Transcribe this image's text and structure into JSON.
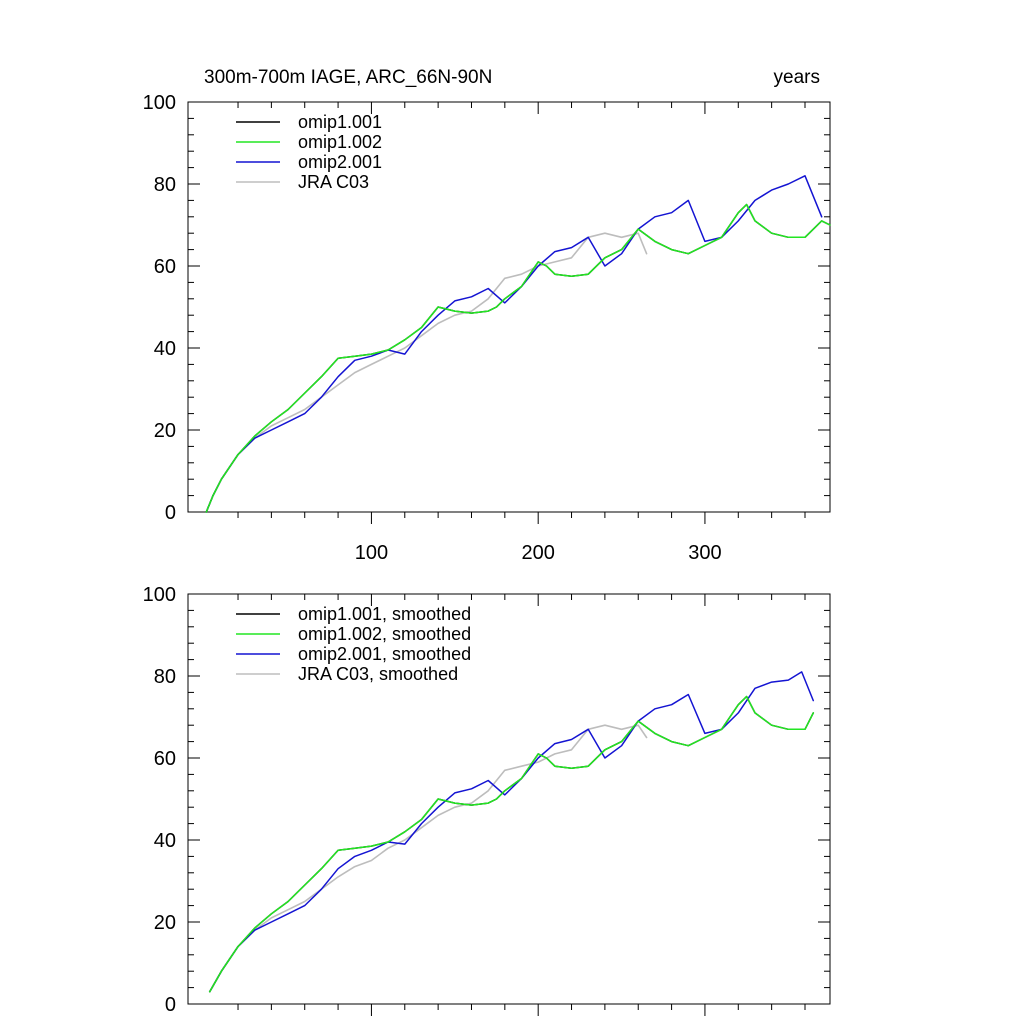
{
  "header": {
    "left": "300m-700m IAGE, ARC_66N-90N",
    "right": "years"
  },
  "colors": {
    "omip1_001": "#000000",
    "omip1_002": "#22e622",
    "omip2_001": "#1414d2",
    "jra": "#bdbdbd"
  },
  "chart_data": [
    {
      "type": "line",
      "title": "300m-700m IAGE, ARC_66N-90N",
      "right_label": "years",
      "xlim": [
        -10,
        375
      ],
      "ylim": [
        0,
        100
      ],
      "x_ticks": [
        100,
        200,
        300
      ],
      "y_ticks": [
        0,
        20,
        40,
        60,
        80,
        100
      ],
      "show_x_tick_labels": true,
      "legend": [
        "omip1.001",
        "omip1.002",
        "omip2.001",
        "JRA C03"
      ],
      "legend_position": "top-left",
      "series": [
        {
          "name": "omip1.001",
          "color": "#000000",
          "x": [
            1,
            5,
            10,
            20,
            30,
            40,
            50,
            60,
            70,
            80,
            90,
            100,
            110,
            120,
            130,
            140,
            150,
            160,
            170,
            175,
            180,
            190,
            200,
            205,
            210,
            220,
            230,
            240,
            250,
            260,
            270,
            280,
            290,
            300,
            310,
            320,
            325,
            330,
            340,
            350,
            360,
            370,
            375
          ],
          "y": [
            0,
            4,
            8,
            14,
            18.5,
            22,
            25,
            29,
            33,
            37.5,
            38,
            38.5,
            39.5,
            42,
            45,
            50,
            49,
            48.5,
            49,
            50,
            52,
            55,
            61,
            60,
            58,
            57.5,
            58,
            62,
            64,
            69,
            66,
            64,
            63,
            65,
            67,
            73,
            75,
            71,
            68,
            67,
            67,
            71,
            70
          ]
        },
        {
          "name": "omip1.002",
          "color": "#22e622",
          "x": [
            1,
            5,
            10,
            20,
            30,
            40,
            50,
            60,
            70,
            80,
            90,
            100,
            110,
            120,
            130,
            140,
            150,
            160,
            170,
            175,
            180,
            190,
            200,
            205,
            210,
            220,
            230,
            240,
            250,
            260,
            270,
            280,
            290,
            300,
            310,
            320,
            325,
            330,
            340,
            350,
            360,
            370,
            375
          ],
          "y": [
            0,
            4,
            8,
            14,
            18.5,
            22,
            25,
            29,
            33,
            37.5,
            38,
            38.5,
            39.5,
            42,
            45,
            50,
            49,
            48.5,
            49,
            50,
            52,
            55,
            61,
            60,
            58,
            57.5,
            58,
            62,
            64,
            69,
            66,
            64,
            63,
            65,
            67,
            73,
            75,
            71,
            68,
            67,
            67,
            71,
            70
          ]
        },
        {
          "name": "omip2.001",
          "color": "#1414d2",
          "x": [
            1,
            5,
            10,
            20,
            30,
            40,
            50,
            60,
            70,
            80,
            90,
            100,
            110,
            120,
            130,
            140,
            150,
            160,
            170,
            180,
            190,
            200,
            210,
            220,
            230,
            240,
            250,
            260,
            270,
            280,
            290,
            300,
            310,
            320,
            330,
            340,
            350,
            360,
            370
          ],
          "y": [
            0,
            4,
            8,
            14,
            18,
            20,
            22,
            24,
            28,
            33,
            37,
            38,
            39.5,
            38.5,
            44,
            48,
            51.5,
            52.5,
            54.5,
            51,
            55,
            60,
            63.5,
            64.5,
            67,
            60,
            63,
            69,
            72,
            73,
            76,
            66,
            67,
            71,
            76,
            78.5,
            80,
            82,
            72
          ]
        },
        {
          "name": "JRA C03",
          "color": "#bdbdbd",
          "x": [
            1,
            5,
            10,
            20,
            30,
            40,
            50,
            60,
            70,
            80,
            90,
            100,
            110,
            120,
            130,
            140,
            150,
            160,
            170,
            180,
            190,
            200,
            210,
            220,
            230,
            240,
            250,
            260,
            265
          ],
          "y": [
            0,
            4,
            8,
            14,
            18,
            21,
            23,
            25,
            28,
            31,
            34,
            36,
            38,
            40,
            43,
            46,
            48,
            49,
            52,
            57,
            58,
            60,
            61,
            62,
            67,
            68,
            67,
            68,
            63
          ]
        }
      ]
    },
    {
      "type": "line",
      "xlim": [
        -10,
        375
      ],
      "ylim": [
        0,
        100
      ],
      "x_ticks": [
        100,
        200,
        300
      ],
      "y_ticks": [
        0,
        20,
        40,
        60,
        80,
        100
      ],
      "show_x_tick_labels": false,
      "legend": [
        "omip1.001, smoothed",
        "omip1.002, smoothed",
        "omip2.001, smoothed",
        "JRA C03, smoothed"
      ],
      "legend_position": "top-left",
      "series": [
        {
          "name": "omip1.001, smoothed",
          "color": "#000000",
          "x": [
            3,
            10,
            20,
            30,
            40,
            50,
            60,
            70,
            80,
            90,
            100,
            110,
            120,
            130,
            140,
            150,
            160,
            170,
            175,
            180,
            190,
            200,
            205,
            210,
            220,
            230,
            240,
            250,
            260,
            270,
            280,
            290,
            300,
            310,
            320,
            325,
            330,
            340,
            350,
            360,
            365
          ],
          "y": [
            3,
            8,
            14,
            18.5,
            22,
            25,
            29,
            33,
            37.5,
            38,
            38.5,
            39.5,
            42,
            45,
            50,
            49,
            48.5,
            49,
            50,
            52,
            55,
            61,
            60,
            58,
            57.5,
            58,
            62,
            64,
            69,
            66,
            64,
            63,
            65,
            67,
            73,
            75,
            71,
            68,
            67,
            67,
            71
          ]
        },
        {
          "name": "omip1.002, smoothed",
          "color": "#22e622",
          "x": [
            3,
            10,
            20,
            30,
            40,
            50,
            60,
            70,
            80,
            90,
            100,
            110,
            120,
            130,
            140,
            150,
            160,
            170,
            175,
            180,
            190,
            200,
            205,
            210,
            220,
            230,
            240,
            250,
            260,
            270,
            280,
            290,
            300,
            310,
            320,
            325,
            330,
            340,
            350,
            360,
            365
          ],
          "y": [
            3,
            8,
            14,
            18.5,
            22,
            25,
            29,
            33,
            37.5,
            38,
            38.5,
            39.5,
            42,
            45,
            50,
            49,
            48.5,
            49,
            50,
            52,
            55,
            61,
            60,
            58,
            57.5,
            58,
            62,
            64,
            69,
            66,
            64,
            63,
            65,
            67,
            73,
            75,
            71,
            68,
            67,
            67,
            71
          ]
        },
        {
          "name": "omip2.001, smoothed",
          "color": "#1414d2",
          "x": [
            3,
            10,
            20,
            30,
            40,
            50,
            60,
            70,
            80,
            90,
            100,
            110,
            120,
            130,
            140,
            150,
            160,
            170,
            180,
            190,
            200,
            210,
            220,
            230,
            240,
            250,
            260,
            270,
            280,
            290,
            300,
            310,
            320,
            330,
            340,
            350,
            358,
            365
          ],
          "y": [
            3,
            8,
            14,
            18,
            20,
            22,
            24,
            28,
            33,
            36,
            37.5,
            39.5,
            39,
            44,
            48,
            51.5,
            52.5,
            54.5,
            51,
            55,
            60,
            63.5,
            64.5,
            67,
            60,
            63,
            69,
            72,
            73,
            75.5,
            66,
            67,
            71,
            77,
            78.5,
            79,
            81,
            74
          ]
        },
        {
          "name": "JRA C03, smoothed",
          "color": "#bdbdbd",
          "x": [
            3,
            10,
            20,
            30,
            40,
            50,
            60,
            70,
            80,
            90,
            100,
            110,
            120,
            130,
            140,
            150,
            160,
            170,
            180,
            190,
            200,
            210,
            220,
            230,
            240,
            250,
            260,
            265
          ],
          "y": [
            3,
            8,
            14,
            18,
            21,
            23,
            25,
            28,
            31,
            33.5,
            35,
            38,
            40,
            43,
            46,
            48,
            49,
            52,
            57,
            58,
            59,
            61,
            62,
            67,
            68,
            67,
            68,
            65
          ]
        }
      ]
    }
  ]
}
